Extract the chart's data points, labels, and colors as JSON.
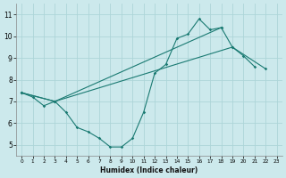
{
  "xlabel": "Humidex (Indice chaleur)",
  "xlim": [
    -0.5,
    23.5
  ],
  "ylim": [
    4.5,
    11.5
  ],
  "xticks": [
    0,
    1,
    2,
    3,
    4,
    5,
    6,
    7,
    8,
    9,
    10,
    11,
    12,
    13,
    14,
    15,
    16,
    17,
    18,
    19,
    20,
    21,
    22,
    23
  ],
  "yticks": [
    5,
    6,
    7,
    8,
    9,
    10,
    11
  ],
  "bg_color": "#cce9ec",
  "grid_color": "#add5d8",
  "line_color": "#1a7a72",
  "line1_x": [
    0,
    1,
    2,
    3,
    4,
    5,
    6,
    7,
    8,
    9,
    10,
    11,
    12,
    13,
    14,
    15,
    16,
    17,
    18
  ],
  "line1_y": [
    7.4,
    7.2,
    6.8,
    7.0,
    6.5,
    5.8,
    5.6,
    5.3,
    4.9,
    4.9,
    5.3,
    6.5,
    8.3,
    8.7,
    9.9,
    10.1,
    10.8,
    10.3,
    10.4
  ],
  "line2_x": [
    0,
    3,
    19,
    20,
    21
  ],
  "line2_y": [
    7.4,
    7.0,
    9.5,
    9.1,
    8.6
  ],
  "line3_x": [
    0,
    3,
    18,
    19,
    22
  ],
  "line3_y": [
    7.4,
    7.0,
    10.4,
    9.5,
    8.5
  ]
}
